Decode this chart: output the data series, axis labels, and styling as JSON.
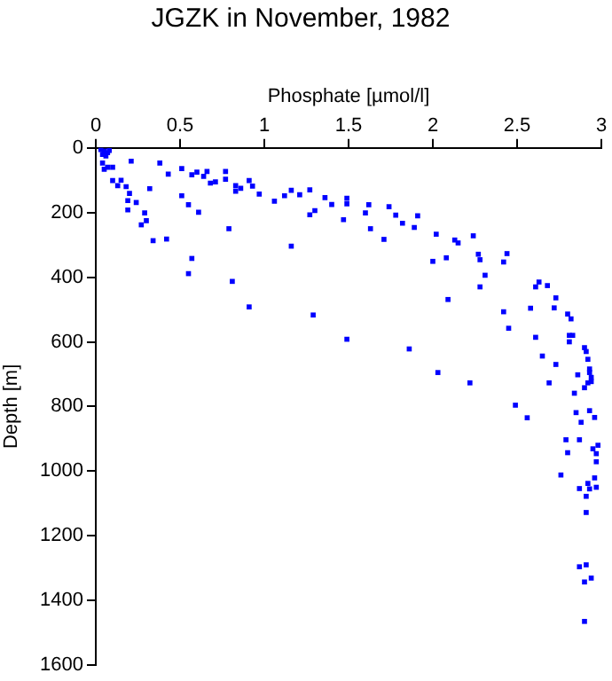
{
  "chart_data": {
    "type": "scatter",
    "title": "JGZK in November, 1982",
    "xlabel": "Phosphate [µmol/l]",
    "ylabel": "Depth [m]",
    "xlim": [
      0,
      3
    ],
    "xticks": [
      0,
      0.5,
      1,
      1.5,
      2,
      2.5,
      3
    ],
    "ylim": [
      1600,
      0
    ],
    "yticks": [
      0,
      200,
      400,
      600,
      800,
      1000,
      1200,
      1400,
      1600
    ],
    "grid": false,
    "marker": "square",
    "series": [
      {
        "color": "#0000ff",
        "x": [
          0.03,
          0.05,
          0.07,
          0.04,
          0.06,
          0.08,
          0.04,
          0.05,
          0.07,
          0.1,
          0.1,
          0.13,
          0.15,
          0.18,
          0.19,
          0.19,
          0.2,
          0.24,
          0.21,
          0.27,
          0.29,
          0.3,
          0.32,
          0.34,
          0.38,
          0.43,
          0.42,
          0.51,
          0.51,
          0.55,
          0.55,
          0.57,
          0.57,
          0.6,
          0.61,
          0.64,
          0.66,
          0.68,
          0.71,
          0.77,
          0.77,
          0.79,
          0.81,
          0.83,
          0.83,
          0.86,
          0.91,
          0.93,
          0.91,
          0.97,
          1.06,
          1.12,
          1.16,
          1.16,
          1.21,
          1.27,
          1.27,
          1.3,
          1.29,
          1.36,
          1.4,
          1.47,
          1.49,
          1.49,
          1.49,
          1.62,
          1.6,
          1.63,
          1.71,
          1.74,
          1.78,
          1.82,
          1.89,
          1.91,
          2.02,
          2.0,
          2.08,
          2.13,
          2.15,
          2.09,
          2.24,
          2.27,
          2.28,
          2.31,
          2.28,
          2.44,
          2.42,
          2.42,
          2.45,
          2.58,
          2.61,
          2.63,
          2.68,
          2.73,
          2.72,
          2.8,
          2.82,
          2.81,
          2.83,
          2.81,
          2.61,
          2.65,
          2.73,
          2.86,
          2.9,
          2.91,
          2.92,
          2.93,
          2.94,
          1.86,
          2.03,
          2.22,
          2.69,
          2.93,
          2.94,
          2.92,
          2.9,
          2.84,
          2.49,
          2.56,
          2.85,
          2.93,
          2.88,
          2.96,
          2.87,
          2.79,
          2.8,
          2.95,
          2.98,
          2.97,
          2.97,
          2.76,
          2.96,
          2.92,
          2.93,
          2.97,
          2.87,
          2.91,
          2.91,
          2.87,
          2.91,
          2.9,
          2.94,
          2.9
        ],
        "values": [
          5,
          10,
          15,
          20,
          25,
          8,
          47,
          66,
          60,
          60,
          101,
          117,
          100,
          120,
          163,
          192,
          141,
          169,
          41,
          238,
          201,
          225,
          126,
          287,
          47,
          81,
          282,
          64,
          148,
          176,
          389,
          342,
          83,
          75,
          199,
          88,
          73,
          109,
          105,
          73,
          97,
          250,
          413,
          117,
          134,
          125,
          101,
          118,
          492,
          143,
          165,
          148,
          131,
          304,
          145,
          130,
          207,
          194,
          517,
          154,
          175,
          222,
          156,
          173,
          592,
          176,
          201,
          250,
          283,
          182,
          208,
          233,
          246,
          210,
          267,
          351,
          340,
          285,
          294,
          469,
          272,
          329,
          346,
          394,
          430,
          327,
          353,
          507,
          558,
          496,
          430,
          415,
          426,
          464,
          495,
          514,
          529,
          580,
          580,
          600,
          586,
          644,
          670,
          702,
          618,
          630,
          654,
          684,
          710,
          622,
          695,
          727,
          727,
          695,
          723,
          727,
          742,
          759,
          796,
          835,
          819,
          813,
          849,
          834,
          903,
          903,
          943,
          931,
          920,
          946,
          971,
          1012,
          1021,
          1038,
          1055,
          1050,
          1054,
          1078,
          1128,
          1296,
          1290,
          1343,
          1331,
          1465
        ]
      }
    ]
  }
}
